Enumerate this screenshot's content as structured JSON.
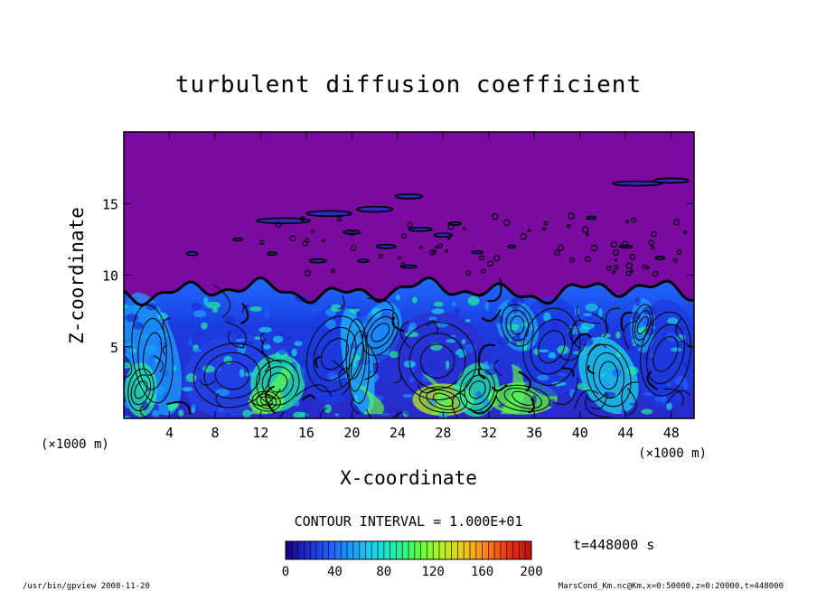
{
  "chart_data": {
    "type": "heatmap",
    "title": "turbulent diffusion coefficient",
    "xlabel": "X-coordinate",
    "ylabel": "Z-coordinate",
    "x_unit_left": "(×1000 m)",
    "x_unit_right": "(×1000 m)",
    "xlim": [
      0,
      50
    ],
    "ylim": [
      0,
      20
    ],
    "x_ticks": [
      4,
      8,
      12,
      16,
      20,
      24,
      28,
      32,
      36,
      40,
      44,
      48
    ],
    "y_ticks": [
      5,
      10,
      15
    ],
    "contour_interval": "CONTOUR INTERVAL = 1.000E+01",
    "time_label": "t=448000 s",
    "colorbar": {
      "min": 0,
      "max": 200,
      "ticks": [
        0,
        40,
        80,
        120,
        160,
        200
      ],
      "colors": [
        "#1a0080",
        "#1f2bd0",
        "#2060ff",
        "#1aa0ff",
        "#18d8e8",
        "#22f0a0",
        "#60ff40",
        "#b8f020",
        "#f0c818",
        "#ff8018",
        "#e83010",
        "#c01010"
      ]
    },
    "upper_layer_color": "#7b0aa0",
    "boundary_layer_top_km": 9.5
  },
  "footer": {
    "left": "/usr/bin/gpview   2008-11-20",
    "right": "MarsCond_Km.nc@Km,x=0:50000,z=0:20000,t=448000"
  }
}
